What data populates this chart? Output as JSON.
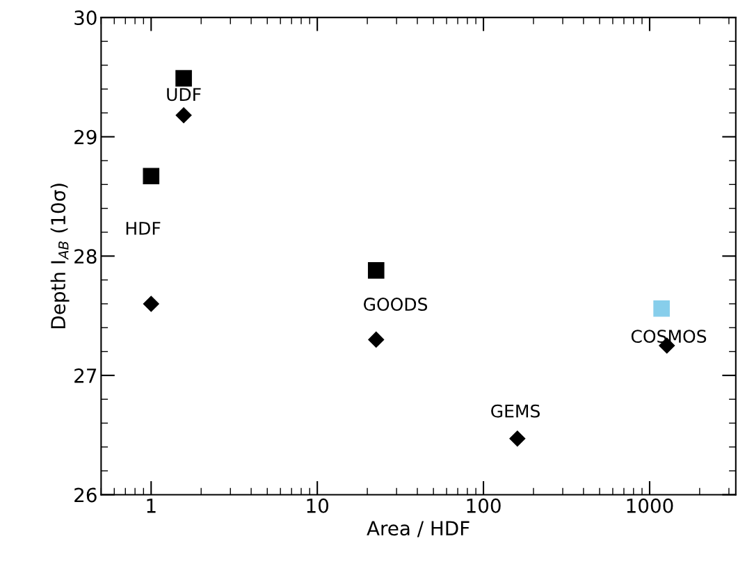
{
  "chart_data": {
    "type": "scatter",
    "xlabel": "Area / HDF",
    "ylabel": "Depth I$_{AB}$ (10σ)",
    "log": "x",
    "xlim": [
      0.5,
      3300
    ],
    "ylim": [
      26,
      30
    ],
    "xticks": [
      1,
      10,
      100,
      1000
    ],
    "yticks": [
      26,
      27,
      28,
      29,
      30
    ],
    "grid": false,
    "legend": false,
    "series": [
      {
        "color": "#000000",
        "marker": "square",
        "x": [
          1,
          1.57,
          22.6
        ],
        "values": [
          28.67,
          29.49,
          27.88
        ]
      },
      {
        "color": "#000000",
        "marker": "diamond",
        "x": [
          1,
          1.57,
          22.6,
          160,
          1270
        ],
        "values": [
          27.6,
          29.18,
          27.3,
          26.47,
          27.25
        ]
      },
      {
        "color": "#87ceeb",
        "marker": "square",
        "x": [
          1180
        ],
        "values": [
          27.56
        ]
      }
    ],
    "annotations": [
      "HDF",
      {
        "text": "UDF",
        "x": 1.57,
        "y": 29.18
      },
      {
        "text": "GOODS",
        "x": 22.6,
        "y": 27.3
      },
      {
        "text": "GEMS",
        "x": 160,
        "y": 26.47
      },
      {
        "text": "COSMOS",
        "x": 1270,
        "y": 27.25
      }
    ]
  }
}
